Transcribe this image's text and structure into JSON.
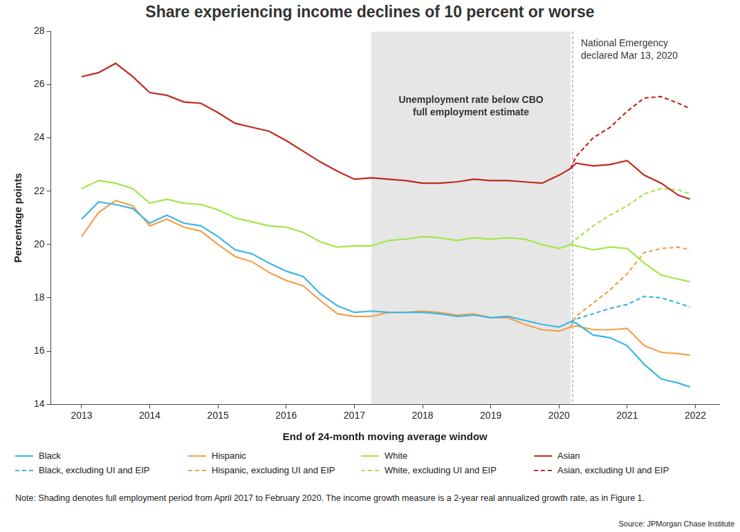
{
  "chart_data": {
    "type": "line",
    "title": "Share experiencing income declines of 10 percent or worse",
    "x_label": "End of 24-month moving average window",
    "y_label": "Percentage points",
    "x": [
      2013,
      2013.25,
      2013.5,
      2013.75,
      2014,
      2014.25,
      2014.5,
      2014.75,
      2015,
      2015.25,
      2015.5,
      2015.75,
      2016,
      2016.25,
      2016.5,
      2016.75,
      2017,
      2017.25,
      2017.5,
      2017.75,
      2018,
      2018.25,
      2018.5,
      2018.75,
      2019,
      2019.25,
      2019.5,
      2019.75,
      2020,
      2020.17,
      2020.25,
      2020.5,
      2020.75,
      2021,
      2021.25,
      2021.5,
      2021.75,
      2021.92
    ],
    "xlim": [
      2012.55,
      2022.35
    ],
    "xticks": [
      2013,
      2014,
      2015,
      2016,
      2017,
      2018,
      2019,
      2020,
      2021,
      2022
    ],
    "ylim": [
      14,
      28
    ],
    "yticks": [
      14,
      16,
      18,
      20,
      22,
      24,
      26,
      28
    ],
    "grid": false,
    "legend": "bottom",
    "series": [
      {
        "name": "Black",
        "color": "#3db5e6",
        "line_style": "solid",
        "values": [
          20.95,
          21.6,
          21.5,
          21.35,
          20.8,
          21.1,
          20.8,
          20.7,
          20.3,
          19.8,
          19.65,
          19.3,
          19.0,
          18.8,
          18.15,
          17.7,
          17.45,
          17.5,
          17.45,
          17.45,
          17.45,
          17.4,
          17.3,
          17.35,
          17.25,
          17.3,
          17.15,
          17.0,
          16.9,
          17.1,
          17.05,
          16.6,
          16.5,
          16.2,
          15.5,
          14.95,
          14.8,
          14.65
        ]
      },
      {
        "name": "Hispanic",
        "color": "#f5a04a",
        "line_style": "solid",
        "values": [
          20.3,
          21.2,
          21.65,
          21.45,
          20.7,
          20.95,
          20.65,
          20.5,
          20.0,
          19.55,
          19.35,
          18.95,
          18.65,
          18.45,
          17.9,
          17.4,
          17.3,
          17.3,
          17.45,
          17.45,
          17.5,
          17.45,
          17.35,
          17.4,
          17.25,
          17.25,
          17.0,
          16.8,
          16.75,
          16.9,
          16.95,
          16.8,
          16.8,
          16.85,
          16.2,
          15.95,
          15.9,
          15.85
        ]
      },
      {
        "name": "White",
        "color": "#a3e64a",
        "line_style": "solid",
        "values": [
          22.1,
          22.4,
          22.3,
          22.1,
          21.55,
          21.7,
          21.55,
          21.5,
          21.3,
          21.0,
          20.85,
          20.7,
          20.65,
          20.45,
          20.1,
          19.9,
          19.95,
          19.95,
          20.15,
          20.2,
          20.3,
          20.25,
          20.15,
          20.25,
          20.2,
          20.25,
          20.2,
          20.0,
          19.85,
          20.0,
          19.95,
          19.8,
          19.9,
          19.85,
          19.3,
          18.85,
          18.7,
          18.6
        ]
      },
      {
        "name": "Asian",
        "color": "#c0281e",
        "line_style": "solid",
        "values": [
          26.3,
          26.45,
          26.8,
          26.3,
          25.7,
          25.6,
          25.35,
          25.3,
          24.95,
          24.55,
          24.4,
          24.25,
          23.9,
          23.5,
          23.1,
          22.75,
          22.45,
          22.5,
          22.45,
          22.4,
          22.3,
          22.3,
          22.35,
          22.45,
          22.4,
          22.4,
          22.35,
          22.3,
          22.6,
          22.85,
          23.05,
          22.95,
          23.0,
          23.15,
          22.6,
          22.3,
          21.85,
          21.7
        ]
      },
      {
        "name": "Black, excluding UI and EIP",
        "color": "#3db5e6",
        "line_style": "dashed",
        "values": [
          null,
          null,
          null,
          null,
          null,
          null,
          null,
          null,
          null,
          null,
          null,
          null,
          null,
          null,
          null,
          null,
          null,
          null,
          null,
          null,
          null,
          null,
          null,
          null,
          null,
          null,
          null,
          null,
          null,
          17.1,
          17.2,
          17.4,
          17.6,
          17.75,
          18.05,
          18.0,
          17.8,
          17.65
        ]
      },
      {
        "name": "Hispanic, excluding UI and EIP",
        "color": "#f5a04a",
        "line_style": "dashed",
        "values": [
          null,
          null,
          null,
          null,
          null,
          null,
          null,
          null,
          null,
          null,
          null,
          null,
          null,
          null,
          null,
          null,
          null,
          null,
          null,
          null,
          null,
          null,
          null,
          null,
          null,
          null,
          null,
          null,
          null,
          16.9,
          17.3,
          17.8,
          18.3,
          18.9,
          19.7,
          19.85,
          19.9,
          19.8
        ]
      },
      {
        "name": "White, excluding UI and EIP",
        "color": "#a3e64a",
        "line_style": "dashed",
        "values": [
          null,
          null,
          null,
          null,
          null,
          null,
          null,
          null,
          null,
          null,
          null,
          null,
          null,
          null,
          null,
          null,
          null,
          null,
          null,
          null,
          null,
          null,
          null,
          null,
          null,
          null,
          null,
          null,
          null,
          20.0,
          20.2,
          20.7,
          21.1,
          21.45,
          21.9,
          22.1,
          22.05,
          21.9
        ]
      },
      {
        "name": "Asian, excluding UI and EIP",
        "color": "#c0281e",
        "line_style": "dashed",
        "values": [
          null,
          null,
          null,
          null,
          null,
          null,
          null,
          null,
          null,
          null,
          null,
          null,
          null,
          null,
          null,
          null,
          null,
          null,
          null,
          null,
          null,
          null,
          null,
          null,
          null,
          null,
          null,
          null,
          null,
          22.85,
          23.3,
          24.0,
          24.4,
          25.0,
          25.5,
          25.55,
          25.3,
          25.1
        ]
      }
    ],
    "annotations": [
      {
        "kind": "band",
        "x": [
          2017.25,
          2020.17
        ],
        "text": [
          "Unemployment rate below CBO",
          "full employment estimate"
        ]
      },
      {
        "kind": "vline",
        "x": 2020.2,
        "text": [
          "National Emergency",
          "declared Mar 13, 2020"
        ]
      }
    ],
    "note": "Note: Shading denotes full employment period from April 2017 to February 2020. The income growth measure is a 2-year real annualized growth rate, as in Figure 1.",
    "source": "Source: JPMorgan Chase Institute"
  }
}
